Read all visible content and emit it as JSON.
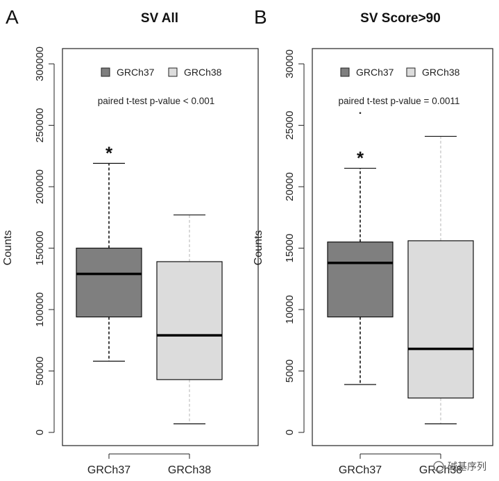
{
  "chart_data": [
    {
      "type": "box",
      "panel": "A",
      "title": "SV All",
      "ylabel": "Counts",
      "ylim": [
        0,
        300000
      ],
      "yticks": [
        0,
        50000,
        100000,
        150000,
        200000,
        250000,
        300000
      ],
      "ytick_labels": [
        "0",
        "50000",
        "100000",
        "150000",
        "200000",
        "250000",
        "300000"
      ],
      "categories": [
        "GRCh37",
        "GRCh38"
      ],
      "series": [
        {
          "name": "GRCh37",
          "whisker_low": 58000,
          "q1": 94000,
          "median": 129000,
          "q3": 150000,
          "whisker_high": 219000,
          "outliers": [],
          "color": "#7f7f7f",
          "whisker_color": "#111111",
          "significance": "*"
        },
        {
          "name": "GRCh38",
          "whisker_low": 7000,
          "q1": 43000,
          "median": 79000,
          "q3": 139000,
          "whisker_high": 177000,
          "outliers": [],
          "color": "#dcdcdc",
          "whisker_color": "#d0d0d0",
          "significance": ""
        }
      ],
      "legend": {
        "position": "top-right",
        "entries": [
          "GRCh37",
          "GRCh38"
        ]
      },
      "annotation": "paired t-test p-value < 0.001"
    },
    {
      "type": "box",
      "panel": "B",
      "title": "SV Score>90",
      "ylabel": "Counts",
      "ylim": [
        0,
        30000
      ],
      "yticks": [
        0,
        5000,
        10000,
        15000,
        20000,
        25000,
        30000
      ],
      "ytick_labels": [
        "0",
        "5000",
        "10000",
        "15000",
        "20000",
        "25000",
        "30000"
      ],
      "categories": [
        "GRCh37",
        "GRCh38"
      ],
      "series": [
        {
          "name": "GRCh37",
          "whisker_low": 3900,
          "q1": 9400,
          "median": 13800,
          "q3": 15500,
          "whisker_high": 21500,
          "outliers": [
            26000
          ],
          "color": "#7f7f7f",
          "whisker_color": "#111111",
          "significance": "*"
        },
        {
          "name": "GRCh38",
          "whisker_low": 700,
          "q1": 2800,
          "median": 6800,
          "q3": 15600,
          "whisker_high": 24100,
          "outliers": [],
          "color": "#dcdcdc",
          "whisker_color": "#d0d0d0",
          "significance": ""
        }
      ],
      "legend": {
        "position": "top-right",
        "entries": [
          "GRCh37",
          "GRCh38"
        ]
      },
      "annotation": "paired t-test p-value = 0.0011"
    }
  ],
  "watermark": "碱基序列"
}
